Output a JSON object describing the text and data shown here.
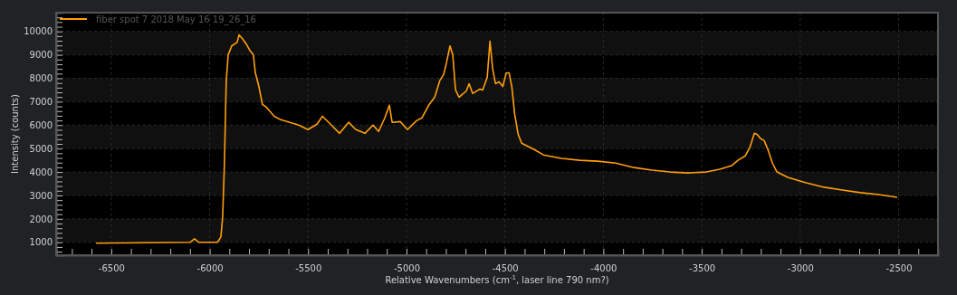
{
  "chart_data": {
    "type": "line",
    "xlabel": "Relative Wavenumbers (cm$^{-1}$, laser line 790 nm?)",
    "ylabel": "Intensity (counts)",
    "xlim": [
      -6780,
      -2300
    ],
    "ylim": [
      450,
      10800
    ],
    "xticks": [
      {
        "value": -6700,
        "label": null
      },
      {
        "value": -6600,
        "label": null
      },
      -6500,
      {
        "value": -6400,
        "label": null
      },
      {
        "value": -6300,
        "label": null
      },
      {
        "value": -6200,
        "label": null
      },
      {
        "value": -6100,
        "label": null
      },
      -6000,
      {
        "value": -5900,
        "label": null
      },
      {
        "value": -5800,
        "label": null
      },
      {
        "value": -5700,
        "label": null
      },
      {
        "value": -5600,
        "label": null
      },
      -5500,
      {
        "value": -5400,
        "label": null
      },
      {
        "value": -5300,
        "label": null
      },
      {
        "value": -5200,
        "label": null
      },
      {
        "value": -5100,
        "label": null
      },
      -5000,
      {
        "value": -4900,
        "label": null
      },
      {
        "value": -4800,
        "label": null
      },
      {
        "value": -4700,
        "label": null
      },
      {
        "value": -4600,
        "label": null
      },
      -4500,
      {
        "value": -4400,
        "label": null
      },
      {
        "value": -4300,
        "label": null
      },
      {
        "value": -4200,
        "label": null
      },
      {
        "value": -4100,
        "label": null
      },
      -4000,
      {
        "value": -3900,
        "label": null
      },
      {
        "value": -3800,
        "label": null
      },
      {
        "value": -3700,
        "label": null
      },
      {
        "value": -3600,
        "label": null
      },
      -3500,
      {
        "value": -3400,
        "label": null
      },
      {
        "value": -3300,
        "label": null
      },
      {
        "value": -3200,
        "label": null
      },
      {
        "value": -3100,
        "label": null
      },
      -3000,
      {
        "value": -2900,
        "label": null
      },
      {
        "value": -2800,
        "label": null
      },
      {
        "value": -2700,
        "label": null
      },
      {
        "value": -2600,
        "label": null
      },
      -2500,
      {
        "value": -2400,
        "label": null
      }
    ],
    "yticks": [
      {
        "value": 600,
        "label": null
      },
      {
        "value": 800,
        "label": null
      },
      1000,
      {
        "value": 1200,
        "label": null
      },
      {
        "value": 1400,
        "label": null
      },
      {
        "value": 1600,
        "label": null
      },
      {
        "value": 1800,
        "label": null
      },
      2000,
      {
        "value": 2200,
        "label": null
      },
      {
        "value": 2400,
        "label": null
      },
      {
        "value": 2600,
        "label": null
      },
      {
        "value": 2800,
        "label": null
      },
      3000,
      {
        "value": 3200,
        "label": null
      },
      {
        "value": 3400,
        "label": null
      },
      {
        "value": 3600,
        "label": null
      },
      {
        "value": 3800,
        "label": null
      },
      4000,
      {
        "value": 4200,
        "label": null
      },
      {
        "value": 4400,
        "label": null
      },
      {
        "value": 4600,
        "label": null
      },
      {
        "value": 4800,
        "label": null
      },
      5000,
      {
        "value": 5200,
        "label": null
      },
      {
        "value": 5400,
        "label": null
      },
      {
        "value": 5600,
        "label": null
      },
      {
        "value": 5800,
        "label": null
      },
      6000,
      {
        "value": 6200,
        "label": null
      },
      {
        "value": 6400,
        "label": null
      },
      {
        "value": 6600,
        "label": null
      },
      {
        "value": 6800,
        "label": null
      },
      7000,
      {
        "value": 7200,
        "label": null
      },
      {
        "value": 7400,
        "label": null
      },
      {
        "value": 7600,
        "label": null
      },
      {
        "value": 7800,
        "label": null
      },
      8000,
      {
        "value": 8200,
        "label": null
      },
      {
        "value": 8400,
        "label": null
      },
      {
        "value": 8600,
        "label": null
      },
      {
        "value": 8800,
        "label": null
      },
      9000,
      {
        "value": 9200,
        "label": null
      },
      {
        "value": 9400,
        "label": null
      },
      {
        "value": 9600,
        "label": null
      },
      {
        "value": 9800,
        "label": null
      },
      10000,
      {
        "value": 10200,
        "label": null
      },
      {
        "value": 10400,
        "label": null
      },
      {
        "value": 10600,
        "label": null
      }
    ],
    "grid": true,
    "legend": "top left",
    "marker": "none",
    "line_style": "solid",
    "x": [
      -6575,
      -6100,
      -6077,
      -6055,
      -5960,
      -5943,
      -5934,
      -5925,
      -5916,
      -5906,
      -5888,
      -5860,
      -5851,
      -5833,
      -5814,
      -5796,
      -5778,
      -5768,
      -5750,
      -5732,
      -5718,
      -5704,
      -5672,
      -5639,
      -5593,
      -5547,
      -5501,
      -5455,
      -5427,
      -5386,
      -5340,
      -5294,
      -5257,
      -5211,
      -5170,
      -5142,
      -5110,
      -5087,
      -5073,
      -5032,
      -4995,
      -4949,
      -4922,
      -4885,
      -4857,
      -4830,
      -4812,
      -4798,
      -4779,
      -4765,
      -4751,
      -4733,
      -4696,
      -4682,
      -4664,
      -4627,
      -4613,
      -4590,
      -4576,
      -4562,
      -4548,
      -4530,
      -4511,
      -4493,
      -4479,
      -4465,
      -4451,
      -4433,
      -4415,
      -4397,
      -4351,
      -4305,
      -4213,
      -4121,
      -4029,
      -3937,
      -3845,
      -3753,
      -3661,
      -3569,
      -3477,
      -3408,
      -3348,
      -3316,
      -3279,
      -3256,
      -3233,
      -3219,
      -3201,
      -3183,
      -3164,
      -3141,
      -3118,
      -3063,
      -2970,
      -2878,
      -2786,
      -2694,
      -2602,
      -2510
    ],
    "series": [
      {
        "name": "fiber spot 7 2018 May 16 19_26_16",
        "color": "#ff9f0a",
        "values": [
          960,
          1000,
          1150,
          1000,
          1000,
          1230,
          2080,
          4380,
          7850,
          9000,
          9380,
          9540,
          9850,
          9690,
          9460,
          9190,
          9000,
          8230,
          7650,
          6880,
          6810,
          6690,
          6380,
          6230,
          6120,
          6000,
          5810,
          6040,
          6380,
          6040,
          5650,
          6120,
          5810,
          5650,
          6000,
          5730,
          6310,
          6850,
          6120,
          6150,
          5810,
          6190,
          6310,
          6880,
          7190,
          7920,
          8150,
          8620,
          9380,
          9000,
          7500,
          7190,
          7460,
          7770,
          7350,
          7540,
          7500,
          8040,
          9580,
          8380,
          7770,
          7850,
          7650,
          8230,
          8230,
          7650,
          6500,
          5610,
          5230,
          5150,
          4960,
          4730,
          4580,
          4500,
          4460,
          4380,
          4190,
          4080,
          4000,
          3960,
          4000,
          4120,
          4270,
          4500,
          4690,
          5040,
          5650,
          5610,
          5420,
          5340,
          4960,
          4380,
          4000,
          3770,
          3540,
          3350,
          3230,
          3120,
          3040,
          2920
        ]
      }
    ]
  }
}
